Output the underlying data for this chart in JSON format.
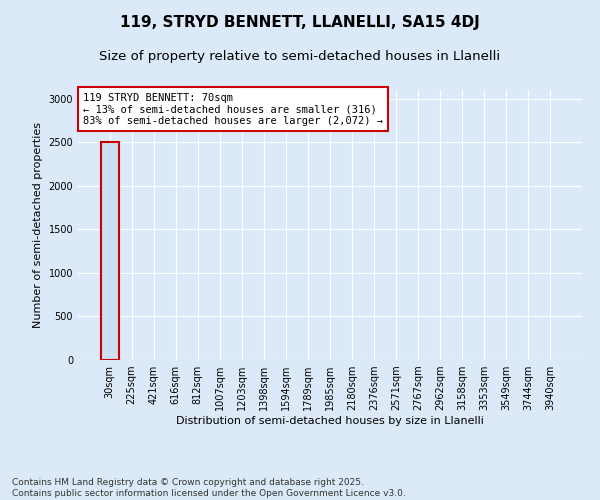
{
  "title": "119, STRYD BENNETT, LLANELLI, SA15 4DJ",
  "subtitle": "Size of property relative to semi-detached houses in Llanelli",
  "xlabel": "Distribution of semi-detached houses by size in Llanelli",
  "ylabel": "Number of semi-detached properties",
  "footnote": "Contains HM Land Registry data © Crown copyright and database right 2025.\nContains public sector information licensed under the Open Government Licence v3.0.",
  "bar_labels": [
    "30sqm",
    "225sqm",
    "421sqm",
    "616sqm",
    "812sqm",
    "1007sqm",
    "1203sqm",
    "1398sqm",
    "1594sqm",
    "1789sqm",
    "1985sqm",
    "2180sqm",
    "2376sqm",
    "2571sqm",
    "2767sqm",
    "2962sqm",
    "3158sqm",
    "3353sqm",
    "3549sqm",
    "3744sqm",
    "3940sqm"
  ],
  "bar_values": [
    2500,
    0,
    0,
    0,
    0,
    0,
    0,
    0,
    0,
    0,
    0,
    0,
    0,
    0,
    0,
    0,
    0,
    0,
    0,
    0,
    0
  ],
  "bar_color": "#cce0f5",
  "bar_edge_color": "#5b9bd5",
  "highlighted_bin": 0,
  "highlight_edge_color": "#cc0000",
  "annotation_text": "119 STRYD BENNETT: 70sqm\n← 13% of semi-detached houses are smaller (316)\n83% of semi-detached houses are larger (2,072) →",
  "annotation_box_color": "#ffffff",
  "annotation_edge_color": "#cc0000",
  "ylim": [
    0,
    3100
  ],
  "yticks": [
    0,
    500,
    1000,
    1500,
    2000,
    2500,
    3000
  ],
  "bg_color": "#dce9f8",
  "plot_bg_color": "#dce9f8",
  "title_fontsize": 11,
  "subtitle_fontsize": 9.5,
  "axis_label_fontsize": 8,
  "tick_fontsize": 7,
  "annotation_fontsize": 7.5,
  "footnote_fontsize": 6.5
}
